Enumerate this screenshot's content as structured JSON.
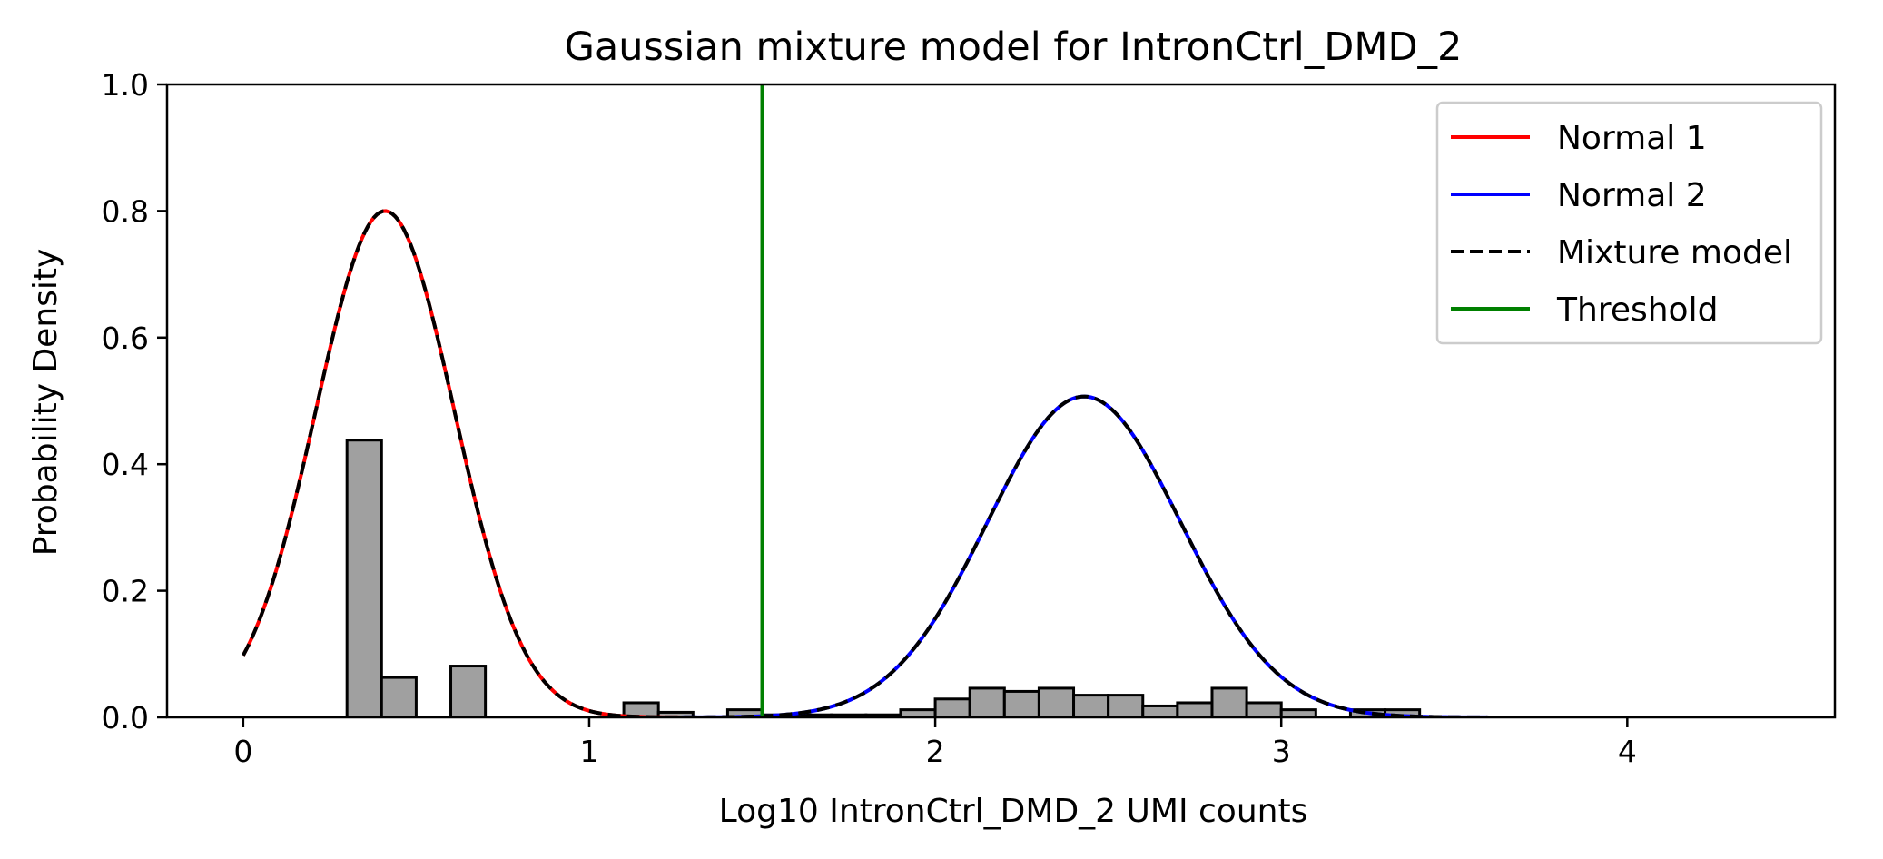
{
  "chart_data": {
    "type": "histogram",
    "title": "Gaussian mixture model for IntronCtrl_DMD_2",
    "xlabel": "Log10 IntronCtrl_DMD_2 UMI counts",
    "ylabel": "Probability Density",
    "xlim": [
      -0.22,
      4.6
    ],
    "ylim": [
      0.0,
      1.0
    ],
    "xticks": [
      0,
      1,
      2,
      3,
      4
    ],
    "yticks": [
      0.0,
      0.2,
      0.4,
      0.6,
      0.8,
      1.0
    ],
    "xtick_labels": [
      "0",
      "1",
      "2",
      "3",
      "4"
    ],
    "ytick_labels": [
      "0.0",
      "0.2",
      "0.4",
      "0.6",
      "0.8",
      "1.0"
    ],
    "grid": false,
    "legend_position": "top-right",
    "x_range": [
      0.0,
      4.39
    ],
    "histogram": {
      "bin_width": 0.1,
      "face_color": "#a0a0a0",
      "edge_color": "#000000",
      "bins": [
        {
          "x0": 0.3,
          "density": 0.438
        },
        {
          "x0": 0.4,
          "density": 0.063
        },
        {
          "x0": 0.6,
          "density": 0.081
        },
        {
          "x0": 1.1,
          "density": 0.023
        },
        {
          "x0": 1.2,
          "density": 0.008
        },
        {
          "x0": 1.4,
          "density": 0.012
        },
        {
          "x0": 1.5,
          "density": 0.004
        },
        {
          "x0": 1.6,
          "density": 0.004
        },
        {
          "x0": 1.7,
          "density": 0.004
        },
        {
          "x0": 1.8,
          "density": 0.004
        },
        {
          "x0": 1.9,
          "density": 0.012
        },
        {
          "x0": 2.0,
          "density": 0.029
        },
        {
          "x0": 2.1,
          "density": 0.046
        },
        {
          "x0": 2.2,
          "density": 0.041
        },
        {
          "x0": 2.3,
          "density": 0.046
        },
        {
          "x0": 2.4,
          "density": 0.035
        },
        {
          "x0": 2.5,
          "density": 0.035
        },
        {
          "x0": 2.6,
          "density": 0.018
        },
        {
          "x0": 2.7,
          "density": 0.023
        },
        {
          "x0": 2.8,
          "density": 0.046
        },
        {
          "x0": 2.9,
          "density": 0.023
        },
        {
          "x0": 3.0,
          "density": 0.012
        },
        {
          "x0": 3.2,
          "density": 0.012
        },
        {
          "x0": 3.3,
          "density": 0.012
        }
      ]
    },
    "components": [
      {
        "name": "Normal 1",
        "color": "#ff0000",
        "mean": 0.41,
        "sd": 0.2,
        "peak_density": 0.8
      },
      {
        "name": "Normal 2",
        "color": "#0000ff",
        "mean": 2.43,
        "sd": 0.28,
        "peak_density": 0.507
      }
    ],
    "mixture": {
      "name": "Mixture model",
      "color": "#000000",
      "style": "dashed"
    },
    "threshold": {
      "name": "Threshold",
      "color": "#008000",
      "x": 1.5
    }
  }
}
